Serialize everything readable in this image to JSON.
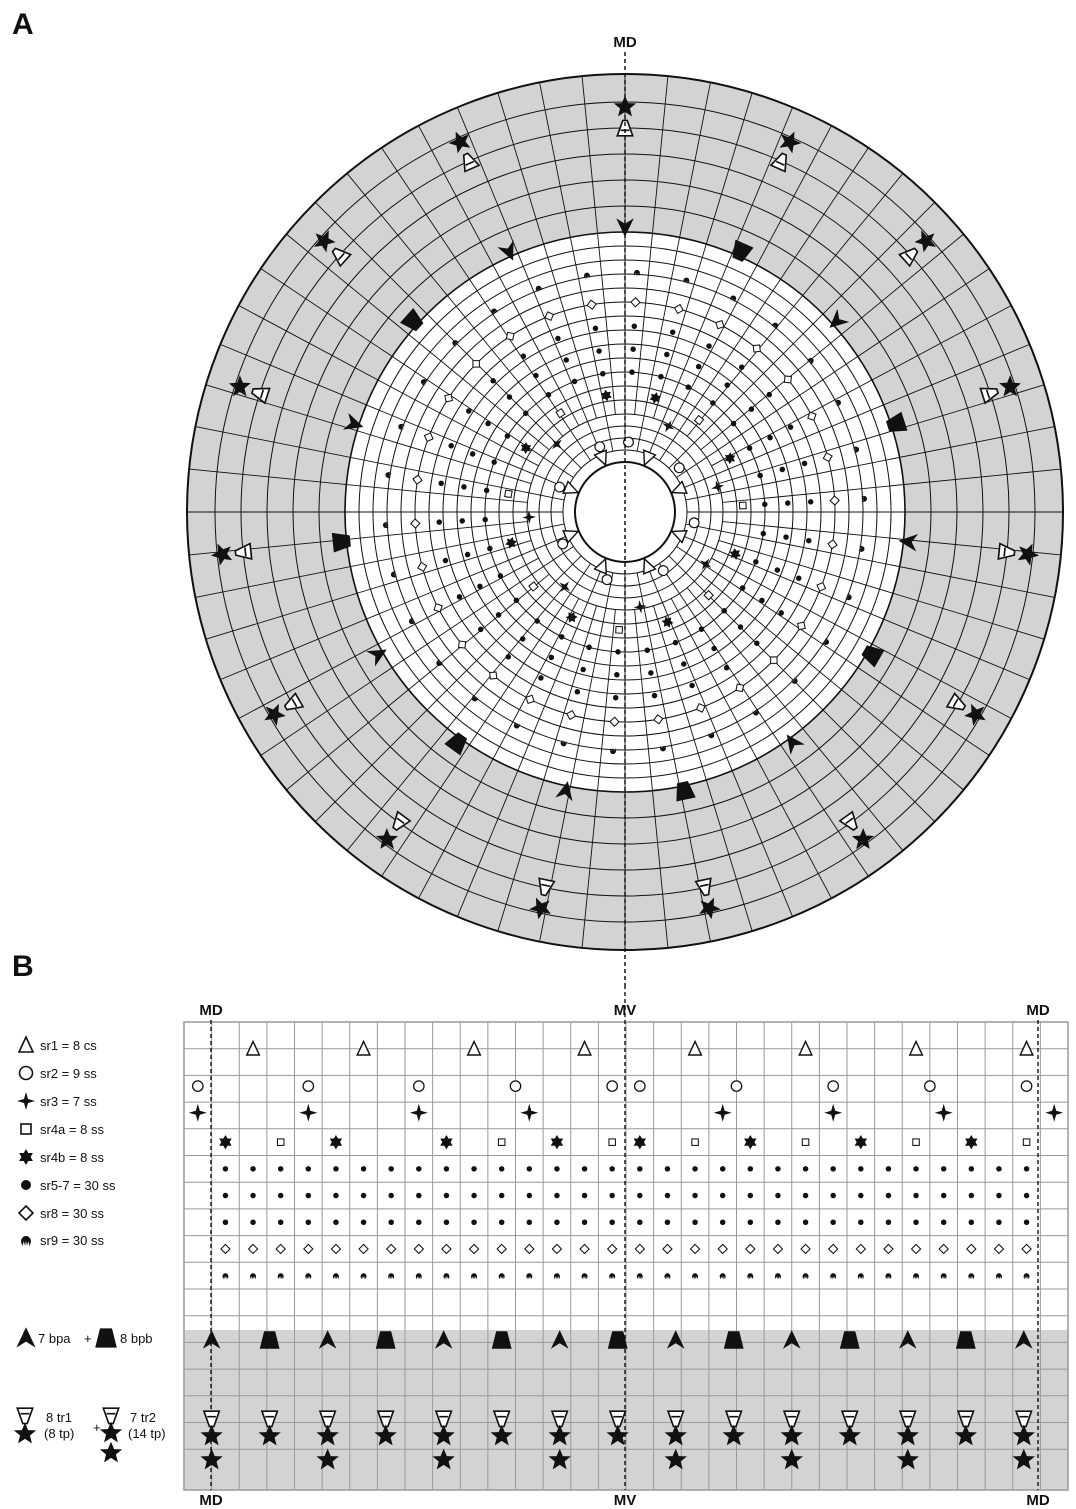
{
  "panel_a": {
    "letter": "A",
    "axis_top": "MD"
  },
  "panel_b": {
    "letter": "B",
    "axis_labels": {
      "left_top": "MD",
      "center_top": "MV",
      "right_top": "MD",
      "left_bottom": "MD",
      "center_bottom": "MV",
      "right_bottom": "MD"
    },
    "legend": [
      {
        "symbol": "triangle-open-icon",
        "text": "sr1 = 8 cs"
      },
      {
        "symbol": "circle-open-icon",
        "text": "sr2 = 9 ss"
      },
      {
        "symbol": "four-point-star-icon",
        "text": "sr3 = 7 ss"
      },
      {
        "symbol": "square-open-icon",
        "text": "sr4a = 8 ss"
      },
      {
        "symbol": "six-point-star-icon",
        "text": "sr4b = 8 ss"
      },
      {
        "symbol": "dot-filled-icon",
        "text": "sr5-7 = 30 ss"
      },
      {
        "symbol": "diamond-open-icon",
        "text": "sr8 = 30 ss"
      },
      {
        "symbol": "comb-icon",
        "text": "sr9 = 30 ss"
      }
    ],
    "legend_bp": {
      "a": "7 bpa",
      "plus": "+",
      "b": "8 bpb"
    },
    "legend_tr": {
      "tr1": "8 tr1",
      "tr1_sub": "(8 tp)",
      "plus": "+",
      "tr2": "7 tr2",
      "tr2_sub": "(14 tp)"
    }
  },
  "colors": {
    "shaded": "#d3d3d3",
    "ink": "#111111",
    "grid": "#999999"
  }
}
